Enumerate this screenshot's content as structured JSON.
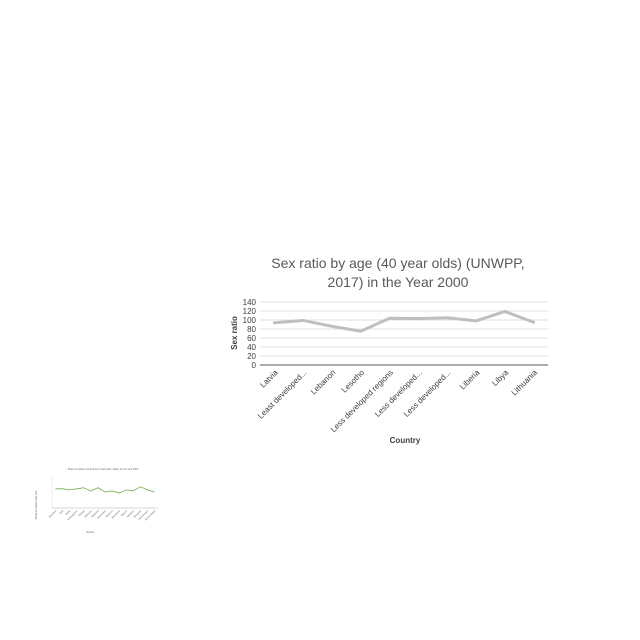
{
  "chart_data": [
    {
      "type": "line",
      "title_lines": [
        "Sex ratio by age (40 year olds) (UNWPP,",
        "2017) in the Year 2000"
      ],
      "xlabel": "Country",
      "ylabel": "Sex ratio",
      "ylim": [
        0,
        140
      ],
      "yticks": [
        0,
        20,
        40,
        60,
        80,
        100,
        120,
        140
      ],
      "grid": true,
      "legend": "none",
      "categories": [
        "Latvia",
        "Least developed...",
        "Lebanon",
        "Lesotho",
        "Less developed regions",
        "Less developed...",
        "Less developed...",
        "Liberia",
        "Libya",
        "Lithuania"
      ],
      "series": [
        {
          "values": [
            94,
            99,
            86,
            75,
            104,
            103,
            105,
            98,
            119,
            95
          ],
          "color": "#bfbfbf"
        }
      ]
    },
    {
      "type": "line",
      "title_lines": [
        "Share of calories derived from food (FAO, 2020), for the Year 2000"
      ],
      "xlabel": "Country",
      "ylabel": "Share of calories from food",
      "categories": [
        "Mauritius",
        "Mali",
        "Malta",
        "Madagascar",
        "Malawi",
        "Malaysia",
        "Maldives",
        "Martinique",
        "Morocco",
        "Mauritania",
        "Mexico",
        "Moldova",
        "Mongolia",
        "Montenegro",
        "Mozambique"
      ],
      "series": [
        {
          "values": [
            88,
            88,
            87,
            88,
            89,
            86,
            89,
            85,
            86,
            84,
            87,
            86,
            90,
            87,
            85
          ],
          "color": "#70ad47"
        }
      ]
    }
  ]
}
